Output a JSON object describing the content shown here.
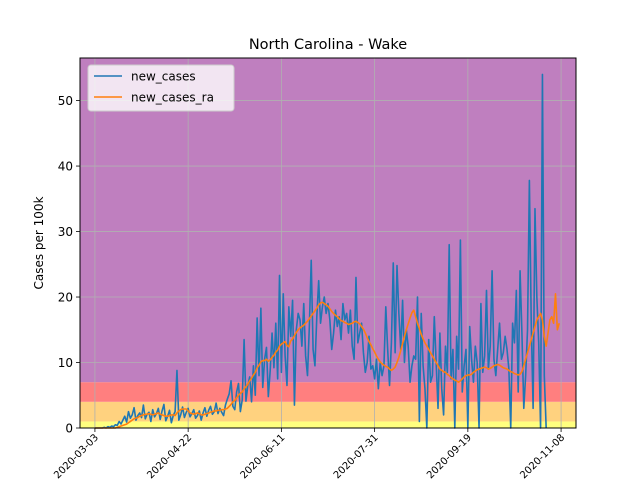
{
  "chart_data": {
    "type": "line",
    "title": "North Carolina - Wake",
    "xlabel": "",
    "ylabel": "Cases per 100k",
    "grid": true,
    "legend_placement": "top-left",
    "x_start": "2020-03-03",
    "x_end": "2020-11-11",
    "xlim": [
      "2020-02-24",
      "2020-11-16"
    ],
    "ylim": [
      0,
      56.5
    ],
    "x_ticks": [
      "2020-03-03",
      "2020-04-22",
      "2020-06-11",
      "2020-07-31",
      "2020-09-19",
      "2020-11-08"
    ],
    "y_ticks": [
      0,
      10,
      20,
      30,
      40,
      50
    ],
    "bands": [
      {
        "from": 0,
        "to": 1,
        "color": "#ffff7f"
      },
      {
        "from": 1,
        "to": 4,
        "color": "#ffd27f"
      },
      {
        "from": 4,
        "to": 7,
        "color": "#ff7f7f"
      },
      {
        "from": 7,
        "to": 56.5,
        "color": "#bf7fbf"
      }
    ],
    "series": [
      {
        "name": "new_cases",
        "color": "#1f77b4",
        "values": [
          0,
          0,
          0,
          0,
          0,
          0.1,
          0,
          0.2,
          0.1,
          0.3,
          0.2,
          0.5,
          0.4,
          1.0,
          0.6,
          1.2,
          1.8,
          0.9,
          2.5,
          1.5,
          2.0,
          3.1,
          1.2,
          1.9,
          2.3,
          1.6,
          3.5,
          1.4,
          2.1,
          2.4,
          1.0,
          2.8,
          1.7,
          2.2,
          3.0,
          1.3,
          2.6,
          3.6,
          1.1,
          1.8,
          2.7,
          0.8,
          1.9,
          2.5,
          8.8,
          1.2,
          2.0,
          3.2,
          1.6,
          2.4,
          3.0,
          1.7,
          2.2,
          2.8,
          1.5,
          1.9,
          2.6,
          1.2,
          2.3,
          3.1,
          1.8,
          2.7,
          3.3,
          2.1,
          2.5,
          3.8,
          2.2,
          3.0,
          2.4,
          1.9,
          3.5,
          4.4,
          5.2,
          7.2,
          3.3,
          2.8,
          5.5,
          6.8,
          2.5,
          4.3,
          13.5,
          4.1,
          6.5,
          7.8,
          4.0,
          9.5,
          5.0,
          16.8,
          8.0,
          18.3,
          6.2,
          10.5,
          12.3,
          4.8,
          8.8,
          14.5,
          9.2,
          16.0,
          7.5,
          23.3,
          8.5,
          20.5,
          11.0,
          6.5,
          18.5,
          14.0,
          19.5,
          3.5,
          15.0,
          17.5,
          16.5,
          12.5,
          19.0,
          11.0,
          8.0,
          15.5,
          25.6,
          12.0,
          9.5,
          17.0,
          22.5,
          16.0,
          18.5,
          20.0,
          17.5,
          19.0,
          16.5,
          12.0,
          14.5,
          18.0,
          15.5,
          17.0,
          13.5,
          19.0,
          16.5,
          17.5,
          14.5,
          18.0,
          12.5,
          10.5,
          23.0,
          13.0,
          14.5,
          16.0,
          11.5,
          8.5,
          10.0,
          14.0,
          9.0,
          9.5,
          7.5,
          10.5,
          6.0,
          10.0,
          8.0,
          9.5,
          18.5,
          12.0,
          6.5,
          13.0,
          25.2,
          11.5,
          24.8,
          17.5,
          12.0,
          19.5,
          10.0,
          15.0,
          12.5,
          7.0,
          9.5,
          11.0,
          10.5,
          20.0,
          1.0,
          17.5,
          9.5,
          6.0,
          0,
          13.5,
          7.0,
          8.0,
          17.0,
          10.0,
          3.0,
          14.5,
          6.0,
          2.0,
          12.5,
          8.5,
          28.0,
          7.5,
          12.0,
          0,
          14.0,
          9.0,
          28.7,
          5.5,
          9.5,
          12.0,
          0,
          15.5,
          10.5,
          7.0,
          12.5,
          10.0,
          0,
          19.0,
          8.5,
          11.0,
          21.0,
          9.0,
          12.5,
          24.0,
          10.5,
          8.0,
          12.0,
          16.0,
          10.5,
          11.5,
          14.0,
          12.0,
          9.0,
          0,
          16.0,
          13.0,
          21.0,
          5.5,
          24.0,
          14.5,
          3.0,
          8.0,
          15.0,
          37.8,
          16.0,
          3.0,
          33.5,
          20.0,
          13.0,
          0,
          54.0,
          8.0,
          0
        ]
      },
      {
        "name": "new_cases_ra",
        "color": "#ff7f0e",
        "values": [
          0,
          0,
          0,
          0,
          0,
          0,
          0,
          0,
          0,
          0,
          0,
          0,
          0.1,
          0.2,
          0.3,
          0.4,
          0.5,
          0.6,
          0.8,
          1.0,
          1.2,
          1.4,
          1.5,
          1.6,
          1.8,
          1.9,
          2.0,
          2.1,
          2.1,
          2.2,
          2.1,
          2.0,
          2.1,
          2.2,
          2.3,
          2.1,
          2.0,
          1.9,
          1.8,
          1.8,
          1.9,
          2.0,
          2.0,
          1.9,
          2.3,
          2.6,
          2.8,
          2.9,
          2.9,
          2.9,
          2.6,
          2.3,
          2.2,
          2.1,
          2.2,
          2.3,
          2.2,
          2.0,
          2.0,
          2.1,
          2.2,
          2.3,
          2.4,
          2.5,
          2.6,
          2.6,
          2.7,
          2.7,
          2.8,
          2.8,
          2.9,
          3.0,
          3.3,
          3.6,
          4.0,
          4.2,
          4.6,
          5.0,
          5.3,
          5.5,
          6.0,
          6.3,
          6.7,
          7.2,
          7.6,
          8.1,
          8.5,
          9.2,
          9.6,
          10.1,
          10.3,
          10.3,
          10.5,
          10.2,
          10.4,
          10.8,
          11.1,
          11.6,
          11.9,
          12.5,
          12.8,
          13.0,
          13.2,
          12.6,
          12.4,
          13.3,
          13.6,
          14.1,
          14.6,
          15.0,
          15.3,
          15.5,
          15.7,
          16.0,
          16.3,
          16.7,
          17.1,
          17.5,
          17.9,
          18.3,
          18.8,
          19.1,
          19.2,
          19.0,
          18.8,
          18.6,
          18.2,
          17.8,
          17.5,
          17.2,
          17.0,
          16.7,
          16.4,
          16.3,
          16.1,
          16.0,
          15.8,
          15.9,
          16.0,
          16.2,
          16.3,
          16.1,
          15.9,
          15.5,
          15.1,
          14.5,
          13.8,
          13.2,
          12.7,
          12.1,
          11.6,
          11.0,
          10.5,
          10.1,
          9.8,
          9.6,
          9.4,
          9.3,
          9.0,
          8.8,
          9.0,
          9.3,
          10.0,
          10.8,
          11.8,
          12.9,
          14.0,
          15.0,
          15.9,
          16.8,
          17.6,
          18.0,
          17.0,
          16.0,
          15.2,
          14.3,
          13.6,
          13.0,
          12.5,
          12.0,
          11.5,
          11.0,
          10.5,
          10.0,
          9.5,
          9.0,
          8.8,
          8.6,
          8.5,
          8.2,
          8.0,
          7.7,
          7.5,
          7.3,
          7.2,
          7.0,
          7.2,
          7.5,
          7.8,
          8.0,
          8.1,
          8.1,
          8.2,
          8.5,
          8.7,
          8.9,
          9.0,
          9.1,
          9.2,
          9.3,
          9.2,
          9.0,
          9.1,
          9.3,
          9.5,
          9.6,
          9.7,
          9.6,
          9.4,
          9.2,
          9.1,
          9.0,
          8.8,
          8.6,
          8.5,
          8.3,
          8.2,
          8.1,
          8.2,
          8.6,
          9.5,
          10.5,
          11.5,
          12.5,
          13.5,
          14.5,
          15.5,
          16.5,
          17.0,
          17.5,
          16.5,
          14.0,
          12.5,
          14.5,
          16.5,
          17.0,
          16.0,
          20.5,
          15.0,
          16.0
        ]
      }
    ]
  }
}
